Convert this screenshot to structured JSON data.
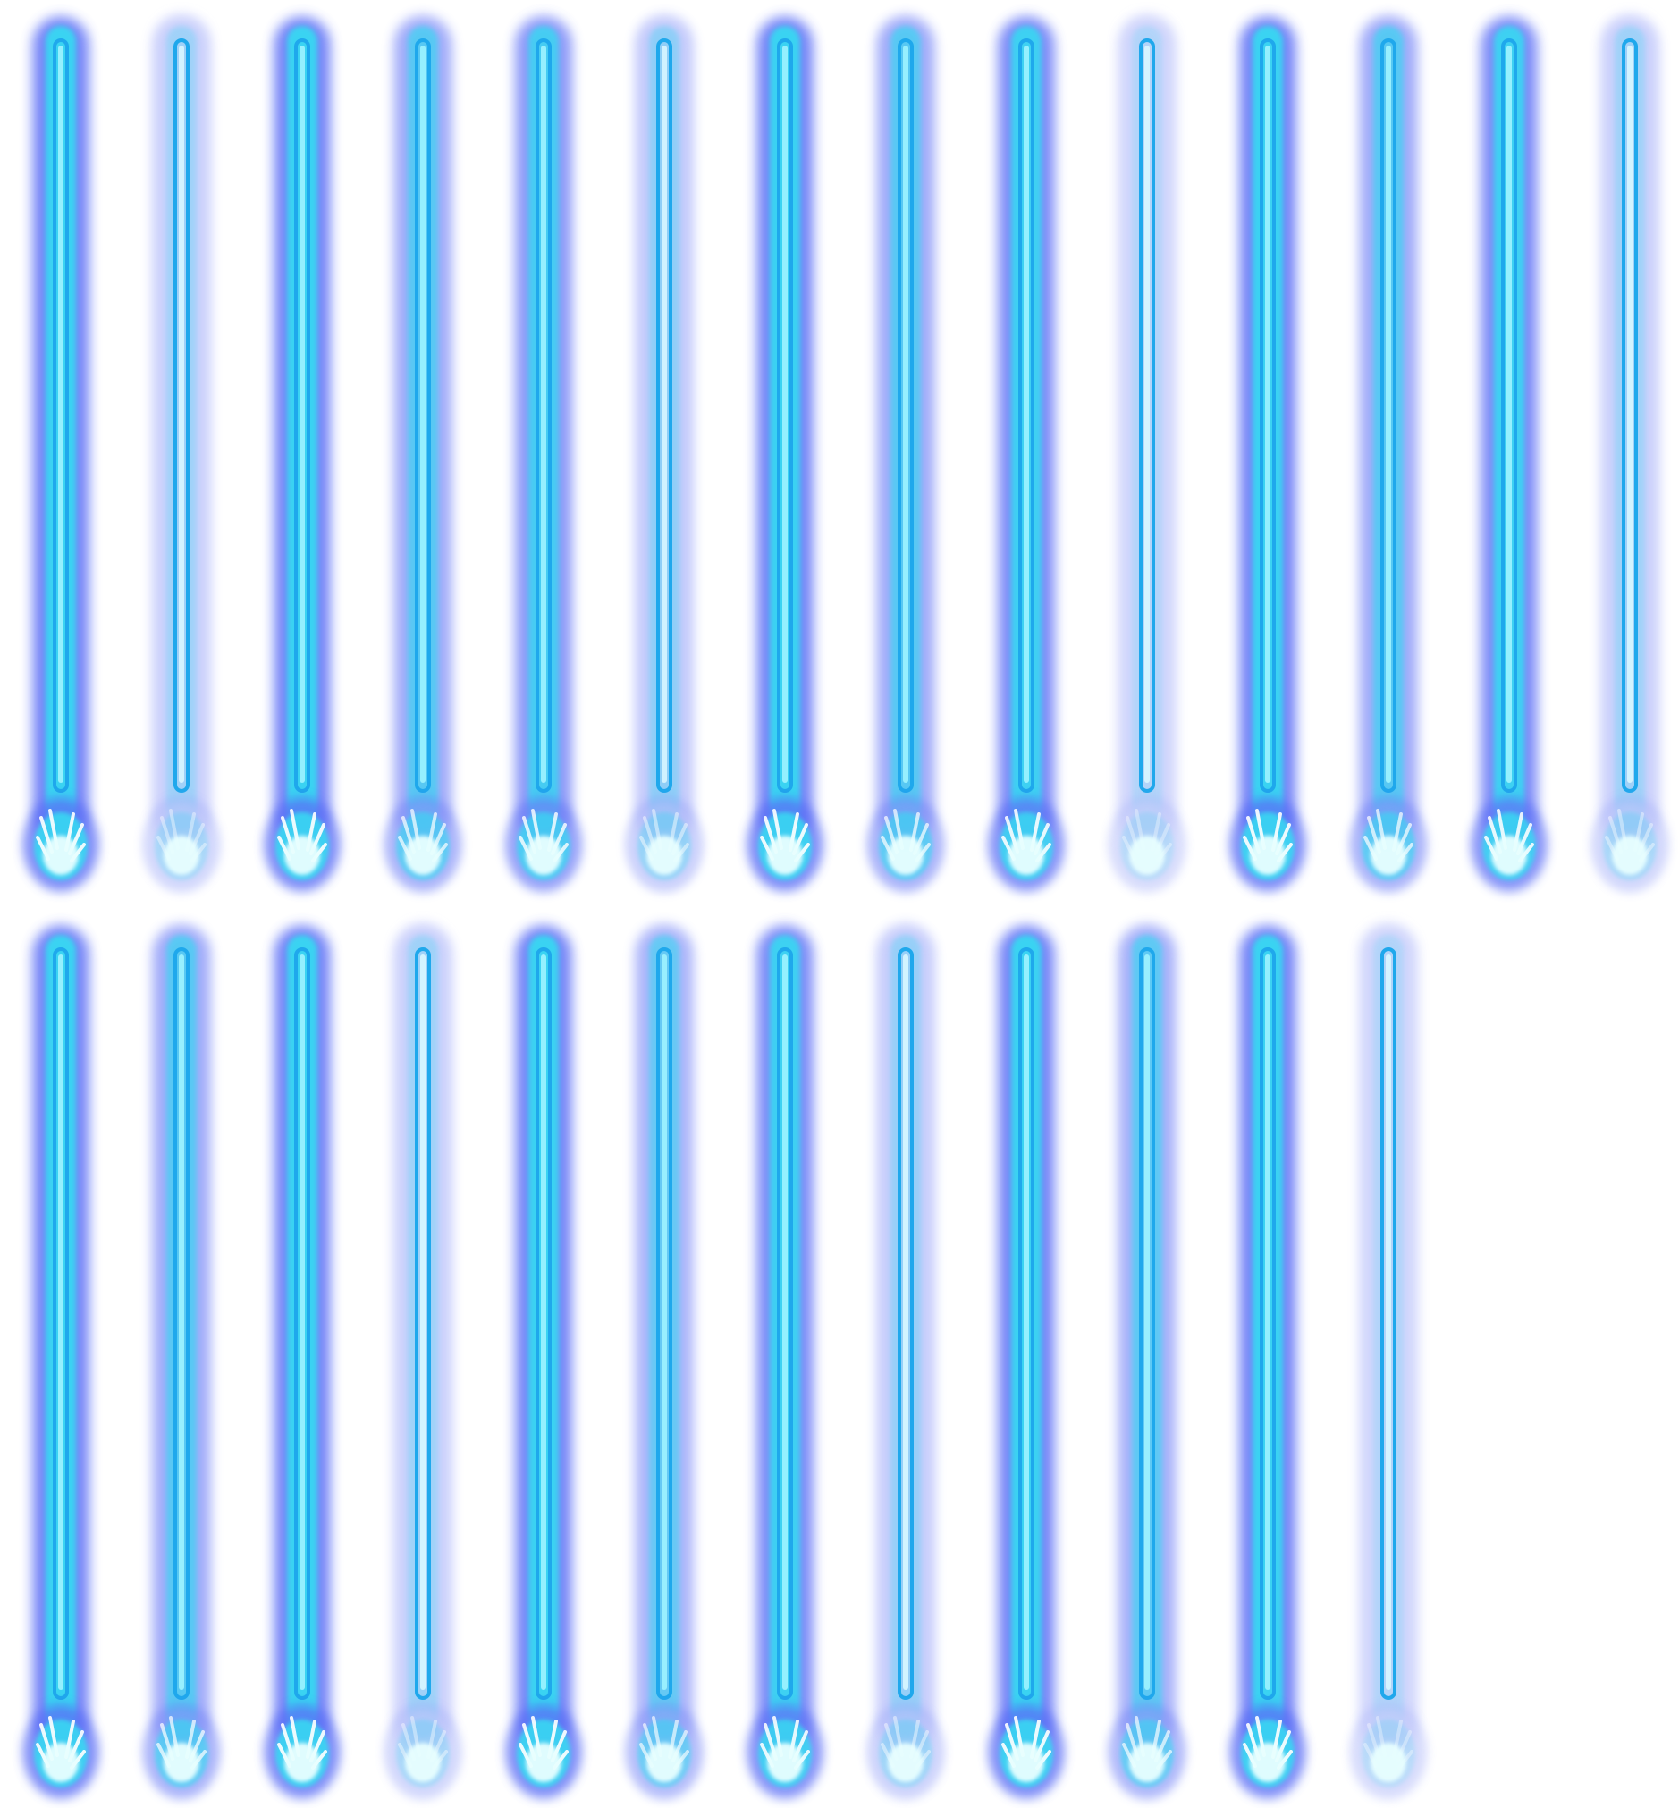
{
  "sprite_sheet": {
    "colors": {
      "background": "#ffffff",
      "core": "#1fa8ec",
      "inner": "#38d8f2",
      "outer_glow": "#4a5ef5",
      "flare": "#e8ffff"
    },
    "rows": [
      {
        "frames": [
          {
            "intensity": 1.0
          },
          {
            "intensity": 0.25
          },
          {
            "intensity": 1.0
          },
          {
            "intensity": 0.7
          },
          {
            "intensity": 0.85
          },
          {
            "intensity": 0.35
          },
          {
            "intensity": 1.0
          },
          {
            "intensity": 0.7
          },
          {
            "intensity": 0.95
          },
          {
            "intensity": 0.15
          },
          {
            "intensity": 1.0
          },
          {
            "intensity": 0.7
          },
          {
            "intensity": 0.95
          },
          {
            "intensity": 0.25
          }
        ]
      },
      {
        "frames": [
          {
            "intensity": 1.0
          },
          {
            "intensity": 0.7
          },
          {
            "intensity": 1.0
          },
          {
            "intensity": 0.25
          },
          {
            "intensity": 1.0
          },
          {
            "intensity": 0.6
          },
          {
            "intensity": 0.95
          },
          {
            "intensity": 0.3
          },
          {
            "intensity": 1.0
          },
          {
            "intensity": 0.65
          },
          {
            "intensity": 1.0
          },
          {
            "intensity": 0.15
          }
        ]
      }
    ]
  }
}
